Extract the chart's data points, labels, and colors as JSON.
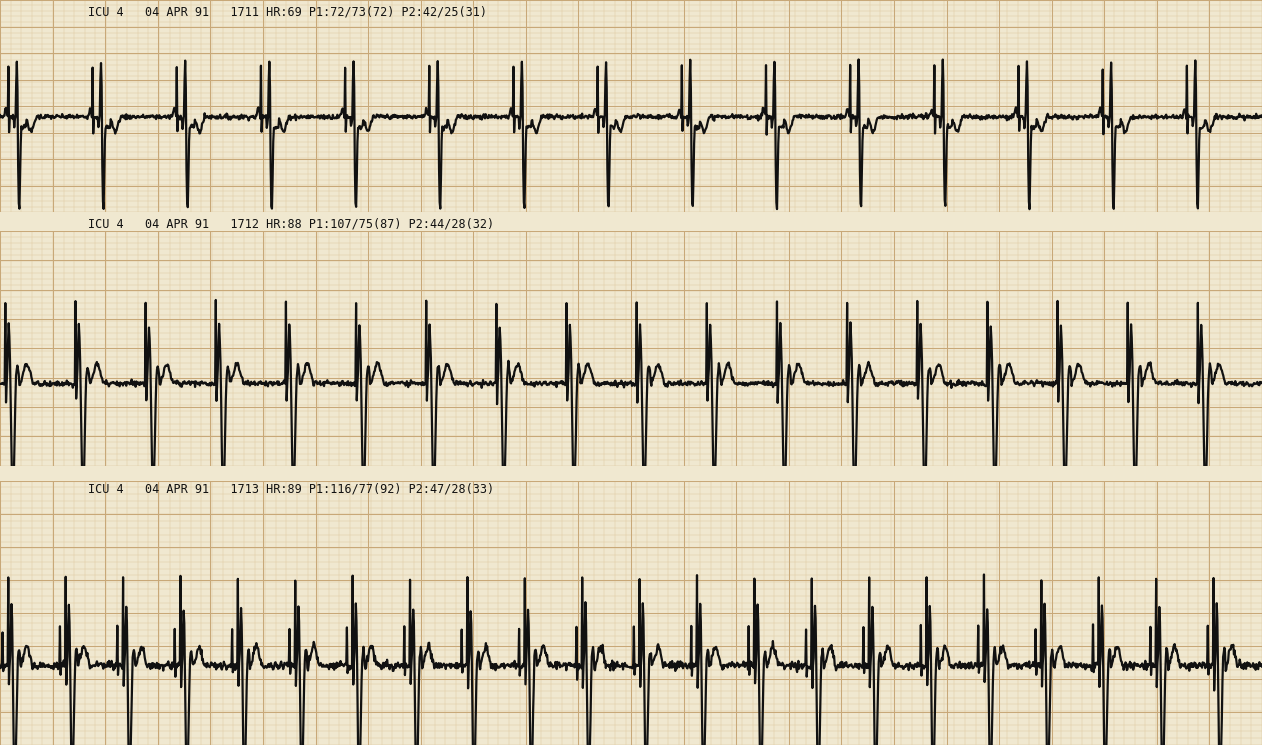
{
  "background_color": "#f0e8d0",
  "grid_color_minor": "#dfc9a0",
  "grid_color_major": "#c8a878",
  "separator_color": "#ffffff",
  "ecg_color": "#111111",
  "ecg_linewidth": 1.6,
  "label_color": "#111111",
  "strips": [
    {
      "label": "ICU 4   04 APR 91   1711 HR:69 P1:72/73(72) P2:42/25(31)",
      "hr": 69,
      "type": "top"
    },
    {
      "label": "ICU 4   04 APR 91   1712 HR:88 P1:107/75(87) P2:44/28(32)",
      "hr": 88,
      "type": "middle"
    },
    {
      "label": "ICU 4   04 APR 91   1713 HR:89 P1:116/77(92) P2:47/28(33)",
      "hr": 89,
      "type": "bottom"
    }
  ],
  "fig_width": 12.62,
  "fig_height": 7.45,
  "dpi": 100
}
